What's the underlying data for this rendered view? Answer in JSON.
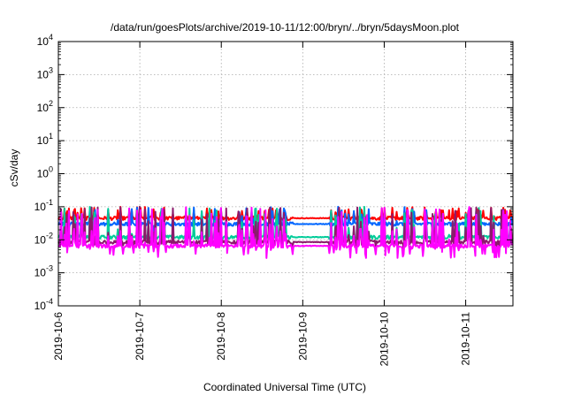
{
  "chart_data": {
    "type": "line",
    "title": "/data/run/goesPlots/archive/2019-10-11/12:00/bryn/../bryn/5daysMoon.plot",
    "xlabel": "Coordinated Universal Time (UTC)",
    "ylabel": "cSv/day",
    "x_tick_labels": [
      "2019-10-6",
      "2019-10-7",
      "2019-10-8",
      "2019-10-9",
      "2019-10-10",
      "2019-10-11"
    ],
    "x_range_days": [
      0,
      5.58
    ],
    "y_scale": "log",
    "ylim": [
      0.0001,
      10000
    ],
    "y_tick_exponents": [
      -4,
      -3,
      -2,
      -1,
      0,
      1,
      2,
      3,
      4
    ],
    "y_tick_base": "10",
    "grid": true,
    "legend": "none",
    "data_gap_days": [
      2.88,
      3.32
    ],
    "series": [
      {
        "color": "#ff0000",
        "baseline": 0.045,
        "approx_range": [
          0.035,
          0.1
        ]
      },
      {
        "color": "#0066ff",
        "baseline": 0.03,
        "approx_range": [
          0.012,
          0.1
        ]
      },
      {
        "color": "#00cc99",
        "baseline": 0.012,
        "approx_range": [
          0.008,
          0.1
        ]
      },
      {
        "color": "#8b1a6b",
        "baseline": 0.0085,
        "approx_range": [
          0.005,
          0.1
        ]
      },
      {
        "color": "#ff00ff",
        "baseline": 0.0065,
        "approx_range": [
          0.0028,
          0.1
        ]
      }
    ]
  }
}
